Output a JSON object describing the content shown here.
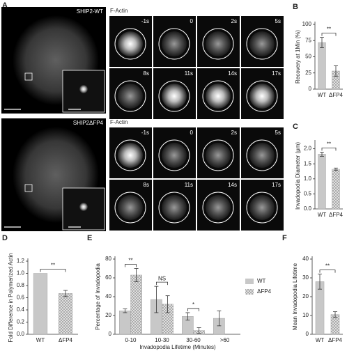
{
  "image_panels": [
    {
      "panel_label": "A",
      "cell_label": "SHIP2-WT",
      "channel": "F-Actin",
      "times": [
        "-1s",
        "0",
        "2s",
        "5s",
        "8s",
        "11s",
        "14s",
        "17s"
      ]
    },
    {
      "cell_label": "SHIP2ΔFP4",
      "channel": "F-Actin",
      "times": [
        "-1s",
        "0",
        "2s",
        "5s",
        "8s",
        "11s",
        "14s",
        "17s"
      ]
    }
  ],
  "chart_data": [
    {
      "type": "bar",
      "panel_label": "B",
      "ylabel": "Recovery at 1Min (%)",
      "categories": [
        "WT",
        "ΔFP4"
      ],
      "values": [
        72,
        28
      ],
      "errors": [
        8,
        8
      ],
      "colors": [
        "#c8c8c8",
        "#dcdcdc"
      ],
      "hatched": [
        false,
        true
      ],
      "ylim": [
        0,
        100
      ],
      "yticks": [
        0,
        25,
        50,
        75,
        100
      ],
      "significance": "**"
    },
    {
      "type": "bar",
      "panel_label": "C",
      "ylabel": "Invadopodia Diameter (μm)",
      "categories": [
        "WT",
        "ΔFP4"
      ],
      "values": [
        1.82,
        1.32
      ],
      "errors": [
        0.07,
        0.04
      ],
      "colors": [
        "#c8c8c8",
        "#dcdcdc"
      ],
      "hatched": [
        false,
        true
      ],
      "ylim": [
        0,
        2.2
      ],
      "yticks": [
        {
          "value": 0,
          "label": "0.0"
        },
        {
          "value": 0.5,
          "label": "0.5"
        },
        {
          "value": 1,
          "label": "1.0"
        },
        {
          "value": 1.5,
          "label": "1.5"
        },
        {
          "value": 2,
          "label": "2.0"
        }
      ],
      "significance": "**"
    },
    {
      "type": "bar",
      "panel_label": "D",
      "ylabel": "Fold Difference in Polymerized Actin",
      "categories": [
        "WT",
        "ΔFP4"
      ],
      "values": [
        1.0,
        0.67
      ],
      "errors": [
        null,
        0.05
      ],
      "colors": [
        "#c8c8c8",
        "#dcdcdc"
      ],
      "hatched": [
        false,
        true
      ],
      "ylim": [
        0,
        1.2
      ],
      "yticks": [
        {
          "value": 0,
          "label": "0.0"
        },
        {
          "value": 0.2,
          "label": "0.2"
        },
        {
          "value": 0.4,
          "label": "0.4"
        },
        {
          "value": 0.6,
          "label": "0.6"
        },
        {
          "value": 0.8,
          "label": "0.8"
        },
        {
          "value": 1,
          "label": "1.0"
        },
        {
          "value": 1.2,
          "label": "1.2"
        }
      ],
      "significance": "**"
    },
    {
      "type": "grouped-bar",
      "panel_label": "E",
      "ylabel": "Percentage of Invadopodia",
      "xlabel": "Invadopodia Lifetime (Minutes)",
      "categories": [
        "0-10",
        "10-30",
        "30-60",
        ">60"
      ],
      "series": [
        {
          "name": "WT",
          "color": "#c8c8c8",
          "hatched": false,
          "values": [
            25,
            37,
            19,
            17
          ],
          "errors": [
            2,
            14,
            4,
            8
          ]
        },
        {
          "name": "ΔFP4",
          "color": "#dcdcdc",
          "hatched": true,
          "values": [
            63,
            32,
            4,
            null
          ],
          "errors": [
            7,
            9,
            3,
            null
          ]
        }
      ],
      "ylim": [
        0,
        80
      ],
      "yticks": [
        0,
        20,
        40,
        60,
        80
      ],
      "significance": [
        "**",
        "NS",
        "*",
        null
      ]
    },
    {
      "type": "bar",
      "panel_label": "F",
      "ylabel": "Mean Invadopodia Lifetime",
      "categories": [
        "WT",
        "ΔFP4"
      ],
      "values": [
        28,
        10.5
      ],
      "errors": [
        4,
        1.5
      ],
      "colors": [
        "#c8c8c8",
        "#dcdcdc"
      ],
      "hatched": [
        false,
        true
      ],
      "ylim": [
        0,
        40
      ],
      "yticks": [
        0,
        10,
        20,
        30,
        40
      ],
      "significance": "**"
    }
  ]
}
